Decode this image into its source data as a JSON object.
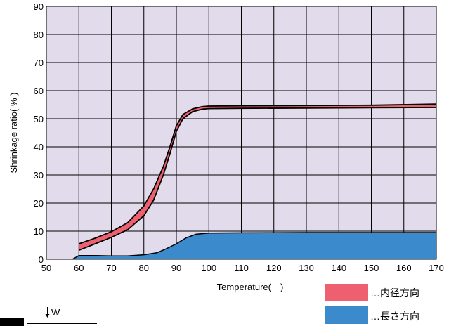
{
  "chart_data": {
    "type": "area",
    "xlabel": "Temperature(　)",
    "ylabel": "Shrinkage ratio( % )",
    "xlim": [
      50,
      170
    ],
    "ylim": [
      0,
      90
    ],
    "x_ticks": [
      50,
      60,
      70,
      80,
      90,
      100,
      110,
      120,
      130,
      140,
      150,
      160,
      170
    ],
    "y_ticks": [
      0,
      10,
      20,
      30,
      40,
      50,
      60,
      70,
      80,
      90
    ],
    "grid": true,
    "legend_position": "bottom-right",
    "background_color": "#e2dbec",
    "series": [
      {
        "name": "…内径方向",
        "color": "#ee6070",
        "upper": [
          [
            60,
            5.5
          ],
          [
            65,
            7.5
          ],
          [
            70,
            9.8
          ],
          [
            75,
            13
          ],
          [
            80,
            19
          ],
          [
            83,
            25
          ],
          [
            86,
            33
          ],
          [
            88,
            40
          ],
          [
            90,
            47.5
          ],
          [
            92,
            51.5
          ],
          [
            95,
            53.5
          ],
          [
            98,
            54.3
          ],
          [
            100,
            54.5
          ],
          [
            110,
            54.6
          ],
          [
            130,
            54.7
          ],
          [
            150,
            54.8
          ],
          [
            170,
            55.2
          ]
        ],
        "lower": [
          [
            60,
            3.2
          ],
          [
            65,
            5.5
          ],
          [
            70,
            7.8
          ],
          [
            75,
            10.5
          ],
          [
            80,
            15.5
          ],
          [
            83,
            21
          ],
          [
            86,
            30
          ],
          [
            88,
            37.5
          ],
          [
            90,
            45.5
          ],
          [
            92,
            50
          ],
          [
            95,
            52.5
          ],
          [
            98,
            53.4
          ],
          [
            100,
            53.6
          ],
          [
            110,
            53.7
          ],
          [
            130,
            53.8
          ],
          [
            150,
            53.9
          ],
          [
            170,
            54.0
          ]
        ]
      },
      {
        "name": "…長さ方向",
        "color": "#3b8acb",
        "values": [
          [
            58,
            0
          ],
          [
            60,
            1.3
          ],
          [
            65,
            1.3
          ],
          [
            70,
            1.2
          ],
          [
            75,
            1.2
          ],
          [
            80,
            1.6
          ],
          [
            84,
            2.3
          ],
          [
            87,
            3.8
          ],
          [
            90,
            5.5
          ],
          [
            93,
            7.6
          ],
          [
            96,
            8.9
          ],
          [
            100,
            9.3
          ],
          [
            110,
            9.4
          ],
          [
            130,
            9.5
          ],
          [
            150,
            9.5
          ],
          [
            170,
            9.5
          ]
        ]
      }
    ]
  },
  "diagram": {
    "label": "W"
  }
}
